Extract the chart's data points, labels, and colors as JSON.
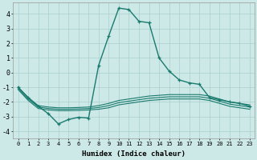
{
  "background_color": "#cce9e7",
  "grid_color": "#aacfcd",
  "line_color": "#1a7a6e",
  "xlabel": "Humidex (Indice chaleur)",
  "xlim": [
    -0.5,
    23.5
  ],
  "ylim": [
    -4.5,
    4.8
  ],
  "yticks": [
    -4,
    -3,
    -2,
    -1,
    0,
    1,
    2,
    3,
    4
  ],
  "xticks": [
    0,
    1,
    2,
    3,
    4,
    5,
    6,
    7,
    8,
    9,
    10,
    11,
    12,
    13,
    14,
    15,
    16,
    17,
    18,
    19,
    20,
    21,
    22,
    23
  ],
  "main_x": [
    0,
    1,
    2,
    3,
    4,
    5,
    6,
    7,
    8,
    9,
    10,
    11,
    12,
    13,
    14,
    15,
    16,
    17,
    18,
    19,
    20,
    21,
    22,
    23
  ],
  "main_y": [
    -1.0,
    -1.7,
    -2.3,
    -2.8,
    -3.5,
    -3.2,
    -3.05,
    -3.1,
    0.5,
    2.5,
    4.4,
    4.3,
    3.5,
    3.4,
    1.0,
    0.1,
    -0.5,
    -0.7,
    -0.8,
    -1.7,
    -1.85,
    -2.0,
    -2.1,
    -2.3
  ],
  "flat1_x": [
    0,
    1,
    2,
    3,
    4,
    5,
    6,
    7,
    8,
    9,
    10,
    11,
    12,
    13,
    14,
    15,
    16,
    17,
    18,
    19,
    20,
    21,
    22,
    23
  ],
  "flat1_y": [
    -1.0,
    -1.7,
    -2.25,
    -2.35,
    -2.4,
    -2.4,
    -2.38,
    -2.35,
    -2.25,
    -2.1,
    -1.9,
    -1.8,
    -1.7,
    -1.6,
    -1.55,
    -1.5,
    -1.5,
    -1.5,
    -1.5,
    -1.6,
    -1.8,
    -2.0,
    -2.1,
    -2.2
  ],
  "flat2_x": [
    0,
    1,
    2,
    3,
    4,
    5,
    6,
    7,
    8,
    9,
    10,
    11,
    12,
    13,
    14,
    15,
    16,
    17,
    18,
    19,
    20,
    21,
    22,
    23
  ],
  "flat2_y": [
    -1.1,
    -1.8,
    -2.35,
    -2.45,
    -2.5,
    -2.5,
    -2.48,
    -2.45,
    -2.38,
    -2.25,
    -2.05,
    -1.95,
    -1.85,
    -1.75,
    -1.7,
    -1.65,
    -1.65,
    -1.65,
    -1.65,
    -1.75,
    -1.95,
    -2.15,
    -2.25,
    -2.35
  ],
  "flat3_x": [
    0,
    1,
    2,
    3,
    4,
    5,
    6,
    7,
    8,
    9,
    10,
    11,
    12,
    13,
    14,
    15,
    16,
    17,
    18,
    19,
    20,
    21,
    22,
    23
  ],
  "flat3_y": [
    -1.15,
    -1.9,
    -2.45,
    -2.55,
    -2.6,
    -2.6,
    -2.58,
    -2.55,
    -2.5,
    -2.4,
    -2.2,
    -2.1,
    -2.0,
    -1.9,
    -1.85,
    -1.8,
    -1.8,
    -1.8,
    -1.8,
    -1.9,
    -2.1,
    -2.3,
    -2.4,
    -2.5
  ]
}
